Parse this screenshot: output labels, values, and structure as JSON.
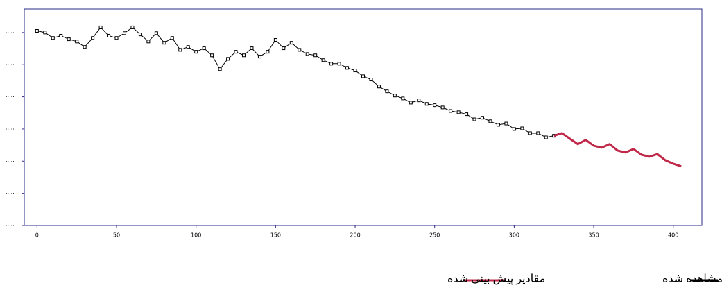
{
  "chart_data": {
    "type": "line",
    "xlim": [
      -8,
      418
    ],
    "xticks": [
      0,
      50,
      100,
      150,
      200,
      250,
      300,
      350,
      400
    ],
    "ylim": [
      0,
      6.73
    ],
    "yticks": [
      {
        "value": 0,
        "label": "....."
      },
      {
        "value": 1,
        "label": "....."
      },
      {
        "value": 2,
        "label": "....."
      },
      {
        "value": 3,
        "label": "....."
      },
      {
        "value": 4,
        "label": "....."
      },
      {
        "value": 5,
        "label": "....."
      },
      {
        "value": 6,
        "label": "....."
      }
    ],
    "series": [
      {
        "name": "مقادیر مشاهده شده",
        "color": "#000000",
        "markers": true,
        "x": [
          0,
          5,
          10,
          15,
          20,
          25,
          30,
          35,
          40,
          45,
          50,
          55,
          60,
          65,
          70,
          75,
          80,
          85,
          90,
          95,
          100,
          105,
          110,
          115,
          120,
          125,
          130,
          135,
          140,
          145,
          150,
          155,
          160,
          165,
          170,
          175,
          180,
          185,
          190,
          195,
          200,
          205,
          210,
          215,
          220,
          225,
          230,
          235,
          240,
          245,
          250,
          255,
          260,
          265,
          270,
          275,
          280,
          285,
          290,
          295,
          300,
          305,
          310,
          315,
          320,
          325
        ],
        "values": [
          6.05,
          6.0,
          5.83,
          5.9,
          5.79,
          5.72,
          5.55,
          5.83,
          6.16,
          5.9,
          5.83,
          5.98,
          6.16,
          5.94,
          5.72,
          5.98,
          5.68,
          5.83,
          5.46,
          5.55,
          5.4,
          5.51,
          5.29,
          4.86,
          5.18,
          5.4,
          5.29,
          5.51,
          5.25,
          5.4,
          5.77,
          5.51,
          5.68,
          5.46,
          5.33,
          5.29,
          5.14,
          5.03,
          5.03,
          4.9,
          4.82,
          4.64,
          4.54,
          4.32,
          4.17,
          4.04,
          3.95,
          3.82,
          3.89,
          3.78,
          3.74,
          3.67,
          3.56,
          3.52,
          3.46,
          3.3,
          3.35,
          3.24,
          3.13,
          3.17,
          3.0,
          3.02,
          2.87,
          2.87,
          2.74,
          2.79
        ]
      },
      {
        "name": "مقادیر پیش بینی شده",
        "color": "#c0284a",
        "markers": false,
        "x": [
          325,
          330,
          335,
          340,
          345,
          350,
          355,
          360,
          365,
          370,
          375,
          380,
          385,
          390,
          395,
          400,
          405
        ],
        "values": [
          2.79,
          2.87,
          2.7,
          2.53,
          2.66,
          2.48,
          2.42,
          2.53,
          2.33,
          2.27,
          2.38,
          2.2,
          2.14,
          2.22,
          2.03,
          1.92,
          1.84
        ]
      }
    ]
  }
}
